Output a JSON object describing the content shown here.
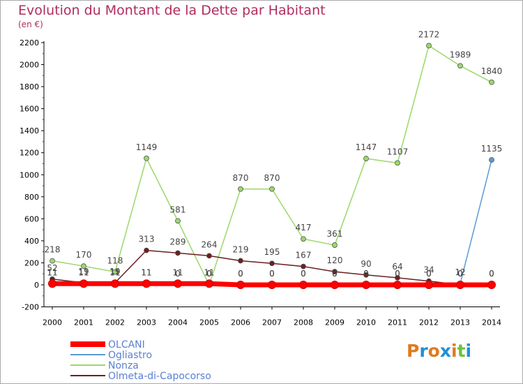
{
  "title": "Evolution du Montant de la Dette par Habitant",
  "subtitle": "(en €)",
  "logo": {
    "text": "Proxiti",
    "colors": [
      "#e07b20",
      "#1e90d8",
      "#e07b20",
      "#1e90d8",
      "#e07b20",
      "#6ac23a",
      "#1e90d8"
    ]
  },
  "chart_data": {
    "type": "line",
    "title": "Evolution du Montant de la Dette par Habitant",
    "ylabel": "(en €)",
    "xlabel": "",
    "ylim": [
      -200,
      2200
    ],
    "yticks": [
      -200,
      0,
      200,
      400,
      600,
      800,
      1000,
      1200,
      1400,
      1600,
      1800,
      2000,
      2200
    ],
    "categories": [
      "2000",
      "2001",
      "2002",
      "2003",
      "2004",
      "2005",
      "2006",
      "2007",
      "2008",
      "2009",
      "2010",
      "2011",
      "2012",
      "2013",
      "2014"
    ],
    "grid": false,
    "legend_position": "bottom-left",
    "series": [
      {
        "name": "OLCANI",
        "color": "#ff0000",
        "values": [
          11,
          11,
          11,
          11,
          11,
          11,
          0,
          0,
          0,
          0,
          0,
          0,
          0,
          0,
          0
        ]
      },
      {
        "name": "Ogliastro",
        "color": "#5b9bd5",
        "values": [
          11,
          11,
          11,
          11,
          0,
          0,
          0,
          0,
          0,
          0,
          0,
          0,
          0,
          12,
          1135
        ]
      },
      {
        "name": "Nonza",
        "color": "#9bd86a",
        "values": [
          218,
          170,
          118,
          1149,
          581,
          0,
          870,
          870,
          417,
          361,
          1147,
          1107,
          2172,
          1989,
          1840
        ]
      },
      {
        "name": "Olmeta-di-Capocorso",
        "color": "#6b1f1f",
        "values": [
          52,
          19,
          19,
          313,
          289,
          264,
          219,
          195,
          167,
          120,
          90,
          64,
          34,
          0,
          0
        ]
      }
    ]
  }
}
